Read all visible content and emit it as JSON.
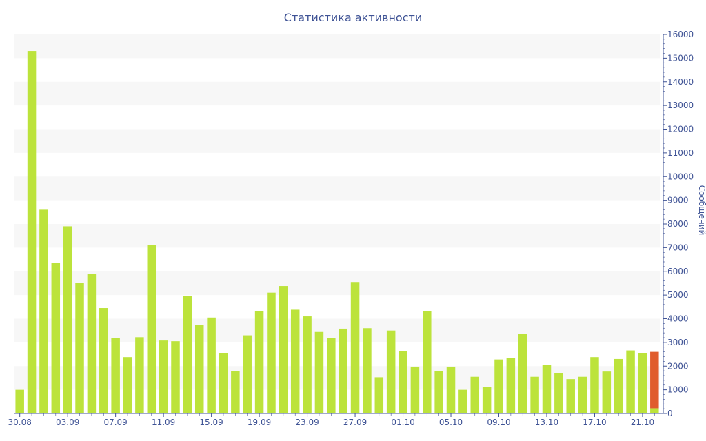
{
  "chart_data": {
    "type": "bar",
    "title": "Статистика активности",
    "ylabel": "Сообщений",
    "ylim": [
      0,
      16000
    ],
    "y_ticks": [
      0,
      1000,
      2000,
      3000,
      4000,
      5000,
      6000,
      7000,
      8000,
      9000,
      10000,
      11000,
      12000,
      13000,
      14000,
      15000,
      16000
    ],
    "x_tick_labels": [
      "30.08",
      "03.09",
      "07.09",
      "11.09",
      "15.09",
      "19.09",
      "23.09",
      "27.09",
      "01.10",
      "05.10",
      "09.10",
      "13.10",
      "17.10",
      "21.10"
    ],
    "categories": [
      "30.08",
      "31.08",
      "01.09",
      "02.09",
      "03.09",
      "04.09",
      "05.09",
      "06.09",
      "07.09",
      "08.09",
      "09.09",
      "10.09",
      "11.09",
      "12.09",
      "13.09",
      "14.09",
      "15.09",
      "16.09",
      "17.09",
      "18.09",
      "19.09",
      "20.09",
      "21.09",
      "22.09",
      "23.09",
      "24.09",
      "25.09",
      "26.09",
      "27.09",
      "28.09",
      "29.09",
      "30.09",
      "01.10",
      "02.10",
      "03.10",
      "04.10",
      "05.10",
      "06.10",
      "07.10",
      "08.10",
      "09.10",
      "10.10",
      "11.10",
      "12.10",
      "13.10",
      "14.10",
      "15.10",
      "16.10",
      "17.10",
      "18.10",
      "19.10",
      "20.10",
      "21.10",
      "22.10"
    ],
    "values": [
      1000,
      15300,
      8600,
      6350,
      7900,
      5500,
      5900,
      4450,
      3200,
      2380,
      3220,
      7100,
      3080,
      3050,
      4950,
      3750,
      4050,
      2550,
      1800,
      3300,
      4330,
      5100,
      5380,
      4380,
      4100,
      3440,
      3200,
      3580,
      5550,
      3600,
      1530,
      3500,
      2630,
      1980,
      4320,
      1800,
      1980,
      1000,
      1550,
      1130,
      2280,
      2350,
      3350,
      1550,
      2050,
      1700,
      1450,
      1550,
      2380,
      1770,
      2300,
      2660,
      2550,
      220
    ],
    "highlight": {
      "category": "22.10",
      "base_value": 220,
      "top_value": 2600,
      "color": "#e05c2d"
    },
    "colors": {
      "bar": "#bce33b",
      "highlight": "#e05c2d",
      "text": "#3f5395",
      "band": "#f7f7f7"
    },
    "grid": true,
    "y_axis_position": "right"
  }
}
